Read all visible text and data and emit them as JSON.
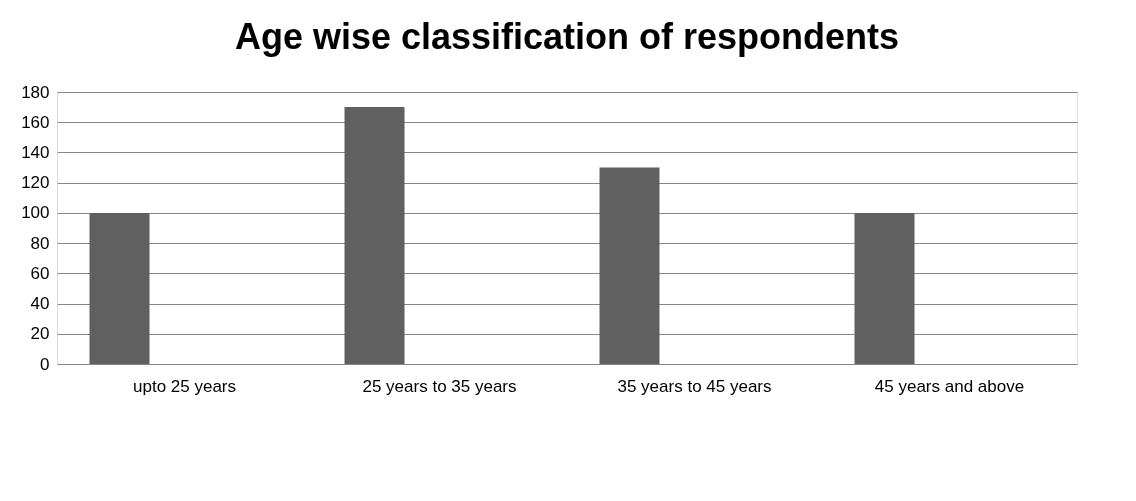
{
  "chart_data": {
    "type": "bar",
    "title": "Age wise classification of respondents",
    "categories": [
      "upto 25 years",
      "25 years to 35 years",
      "35 years to 45 years",
      "45 years and above"
    ],
    "values": [
      100,
      170,
      130,
      100
    ],
    "color": "#606060",
    "ylim": [
      0,
      180
    ],
    "yticks": [
      0,
      20,
      40,
      60,
      80,
      100,
      120,
      140,
      160,
      180
    ],
    "grid": "y"
  }
}
